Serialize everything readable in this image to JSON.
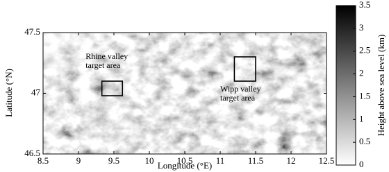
{
  "chart_data": {
    "type": "map",
    "xlabel": "Longitude (°E)",
    "ylabel": "Latitude (°N)",
    "xlim": [
      8.5,
      12.5
    ],
    "xticks": [
      8.5,
      9,
      9.5,
      10,
      10.5,
      11,
      11.5,
      12,
      12.5
    ],
    "ylim": [
      46.5,
      47.5
    ],
    "yticks": [
      46.5,
      47,
      47.5
    ],
    "colorbar": {
      "label": "Height above sea level (km)",
      "lim": [
        0,
        3.5
      ],
      "ticks": [
        0,
        0.5,
        1,
        1.5,
        2,
        2.5,
        3,
        3.5
      ],
      "low_color": "#ffffff",
      "high_color": "#000000"
    },
    "target_areas": [
      {
        "lines": [
          "Rhine valley",
          "target area"
        ],
        "lon": [
          9.33,
          9.62
        ],
        "lat": [
          46.98,
          47.1
        ],
        "label_lon": 9.1,
        "label_lat": 47.3
      },
      {
        "lines": [
          "Wipp valley",
          "target area"
        ],
        "lon": [
          11.2,
          11.5
        ],
        "lat": [
          47.1,
          47.3
        ],
        "label_lon": 11.0,
        "label_lat": 47.03
      }
    ]
  }
}
